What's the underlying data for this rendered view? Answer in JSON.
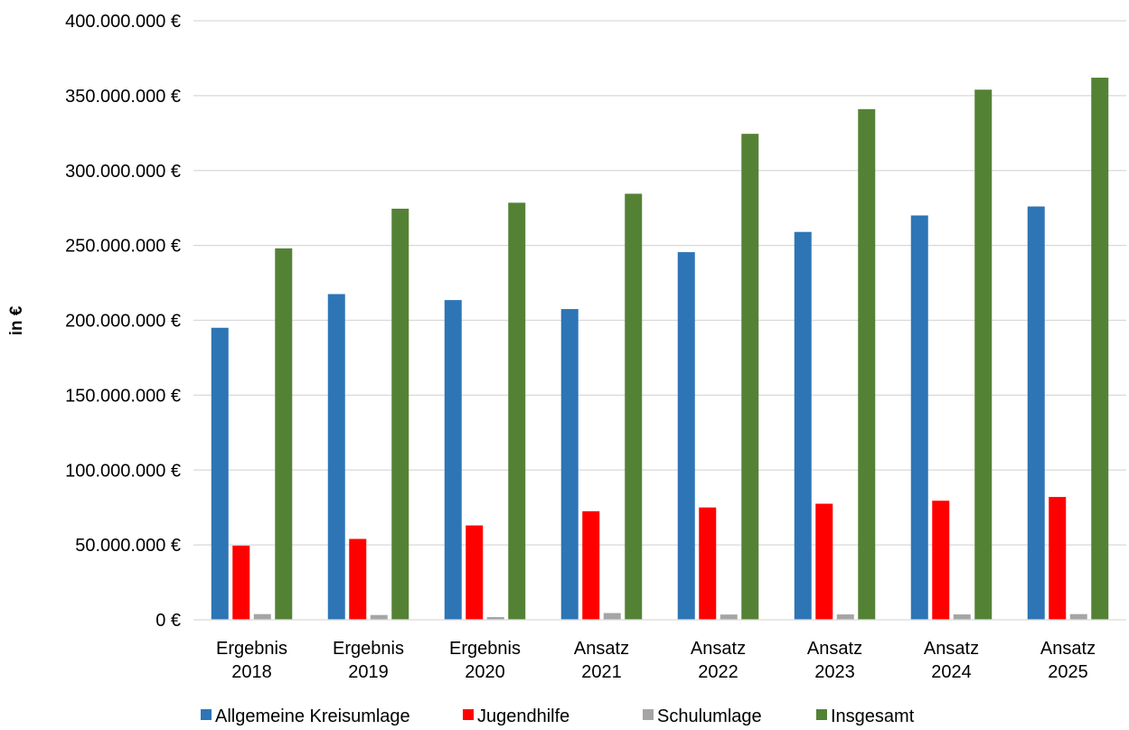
{
  "chart_data": {
    "type": "bar",
    "ylabel": "in €",
    "xlabel": "",
    "ylim": [
      0,
      400000000
    ],
    "yticks": [
      0,
      50000000,
      100000000,
      150000000,
      200000000,
      250000000,
      300000000,
      350000000,
      400000000
    ],
    "ytick_labels": [
      "0 €",
      "50.000.000 €",
      "100.000.000 €",
      "150.000.000 €",
      "200.000.000 €",
      "250.000.000 €",
      "300.000.000 €",
      "350.000.000 €",
      "400.000.000 €"
    ],
    "categories": [
      [
        "Ergebnis",
        "2018"
      ],
      [
        "Ergebnis",
        "2019"
      ],
      [
        "Ergebnis",
        "2020"
      ],
      [
        "Ansatz",
        "2021"
      ],
      [
        "Ansatz",
        "2022"
      ],
      [
        "Ansatz",
        "2023"
      ],
      [
        "Ansatz",
        "2024"
      ],
      [
        "Ansatz",
        "2025"
      ]
    ],
    "series": [
      {
        "name": "Allgemeine Kreisumlage",
        "color": "#2e75b6",
        "values": [
          195000000,
          217500000,
          213500000,
          207500000,
          245500000,
          259000000,
          270000000,
          276000000
        ]
      },
      {
        "name": "Jugendhilfe",
        "color": "#ff0000",
        "values": [
          49500000,
          54000000,
          63000000,
          72500000,
          75000000,
          77500000,
          79500000,
          82000000
        ]
      },
      {
        "name": "Schulumlage",
        "color": "#a5a5a5",
        "values": [
          3800000,
          3200000,
          1800000,
          4500000,
          3500000,
          3600000,
          3600000,
          3800000
        ]
      },
      {
        "name": "Insgesamt",
        "color": "#548235",
        "values": [
          248000000,
          274500000,
          278500000,
          284500000,
          324500000,
          341000000,
          354000000,
          362000000
        ]
      }
    ],
    "grid": true,
    "legend_position": "bottom"
  }
}
